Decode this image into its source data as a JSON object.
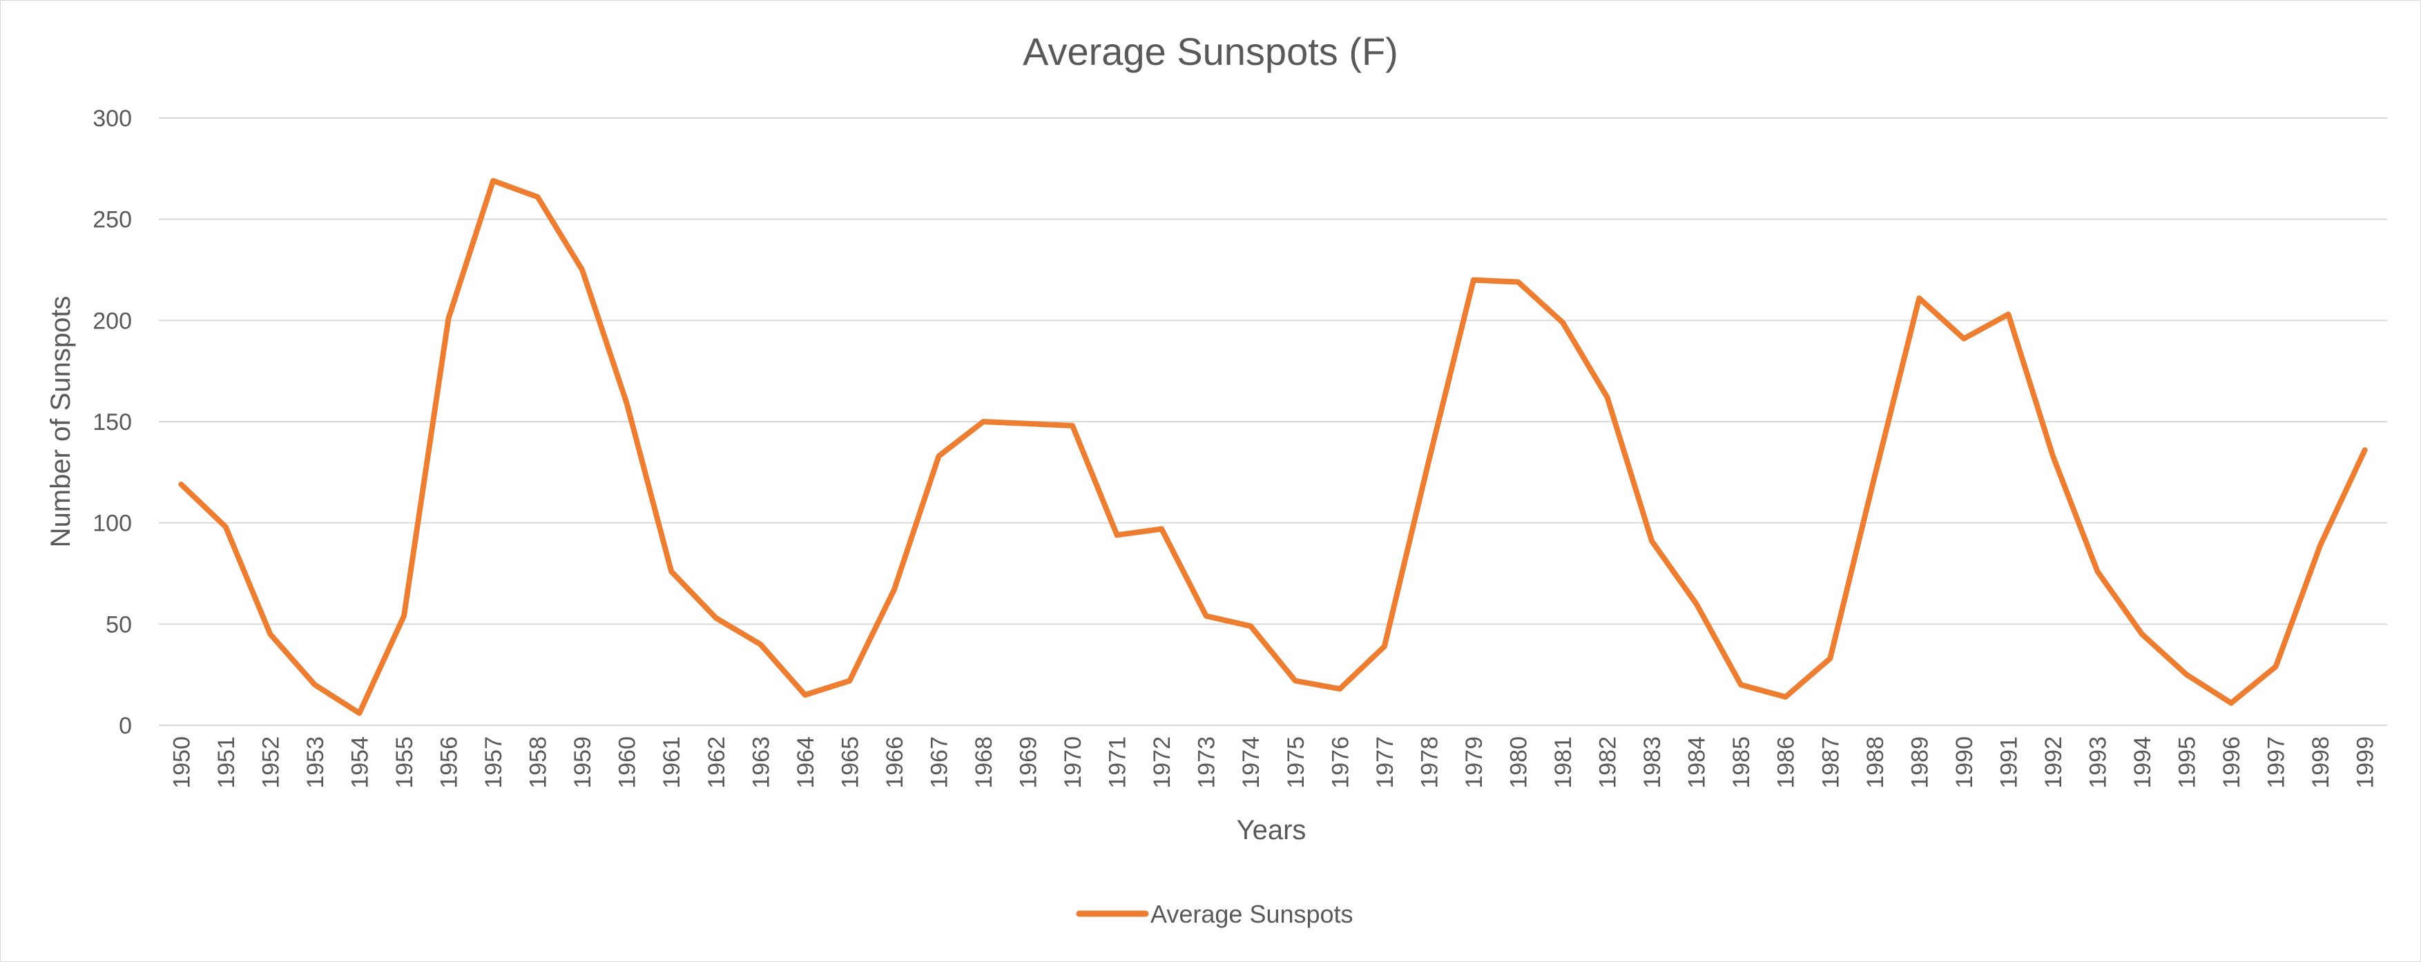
{
  "chart_data": {
    "type": "line",
    "title": "Average Sunspots (F)",
    "xlabel": "Years",
    "ylabel": "Number of Sunspots",
    "ylim": [
      0,
      300
    ],
    "yticks": [
      0,
      50,
      100,
      150,
      200,
      250,
      300
    ],
    "grid": true,
    "legend_position": "bottom",
    "categories": [
      "1950",
      "1951",
      "1952",
      "1953",
      "1954",
      "1955",
      "1956",
      "1957",
      "1958",
      "1959",
      "1960",
      "1961",
      "1962",
      "1963",
      "1964",
      "1965",
      "1966",
      "1967",
      "1968",
      "1969",
      "1970",
      "1971",
      "1972",
      "1973",
      "1974",
      "1975",
      "1976",
      "1977",
      "1978",
      "1979",
      "1980",
      "1981",
      "1982",
      "1983",
      "1984",
      "1985",
      "1986",
      "1987",
      "1988",
      "1989",
      "1990",
      "1991",
      "1992",
      "1993",
      "1994",
      "1995",
      "1996",
      "1997",
      "1998",
      "1999"
    ],
    "series": [
      {
        "name": "Average Sunspots",
        "color": "#ED7D31",
        "values": [
          119,
          98,
          45,
          20,
          6,
          54,
          201,
          269,
          261,
          225,
          159,
          76,
          53,
          40,
          15,
          22,
          67,
          133,
          150,
          149,
          148,
          94,
          97,
          54,
          49,
          22,
          18,
          39,
          131,
          220,
          219,
          199,
          162,
          91,
          60,
          20,
          14,
          33,
          123,
          211,
          191,
          203,
          133,
          76,
          45,
          25,
          11,
          29,
          89,
          136
        ]
      }
    ]
  }
}
